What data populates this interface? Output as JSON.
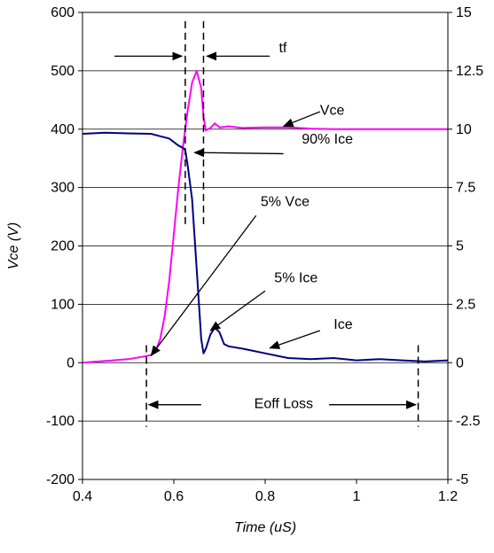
{
  "chart_data": {
    "type": "line",
    "title": "",
    "xlabel": "Time (uS)",
    "ylabel": "Vce (V)",
    "xlim": [
      0.4,
      1.2
    ],
    "ylim": [
      -200,
      600
    ],
    "y2lim": [
      -5,
      15
    ],
    "grid": true,
    "x_ticks": [
      "0.4",
      "0.6",
      "0.8",
      "1",
      "1.2"
    ],
    "y_ticks": [
      "600",
      "500",
      "400",
      "300",
      "200",
      "100",
      "0",
      "-100",
      "-200"
    ],
    "y2_ticks": [
      "15",
      "12.5",
      "10",
      "7.5",
      "5",
      "2.5",
      "0",
      "-2.5",
      "-5"
    ],
    "series": [
      {
        "name": "Vce",
        "color": "#ff00ff",
        "axis": "left",
        "points": [
          [
            0.4,
            0
          ],
          [
            0.45,
            3
          ],
          [
            0.5,
            6
          ],
          [
            0.53,
            10
          ],
          [
            0.55,
            13
          ],
          [
            0.56,
            20
          ],
          [
            0.57,
            40
          ],
          [
            0.58,
            80
          ],
          [
            0.59,
            140
          ],
          [
            0.6,
            220
          ],
          [
            0.61,
            300
          ],
          [
            0.62,
            370
          ],
          [
            0.63,
            430
          ],
          [
            0.64,
            480
          ],
          [
            0.65,
            500
          ],
          [
            0.66,
            470
          ],
          [
            0.665,
            420
          ],
          [
            0.67,
            398
          ],
          [
            0.68,
            402
          ],
          [
            0.69,
            410
          ],
          [
            0.7,
            403
          ],
          [
            0.72,
            405
          ],
          [
            0.75,
            402
          ],
          [
            0.8,
            403
          ],
          [
            0.85,
            403
          ],
          [
            0.9,
            401
          ],
          [
            0.95,
            400
          ],
          [
            1.0,
            400
          ],
          [
            1.1,
            400
          ],
          [
            1.2,
            400
          ]
        ]
      },
      {
        "name": "Ice",
        "color": "#000080",
        "axis": "right",
        "points": [
          [
            0.4,
            9.8
          ],
          [
            0.45,
            9.85
          ],
          [
            0.5,
            9.82
          ],
          [
            0.55,
            9.8
          ],
          [
            0.57,
            9.7
          ],
          [
            0.59,
            9.6
          ],
          [
            0.61,
            9.3
          ],
          [
            0.62,
            9.2
          ],
          [
            0.625,
            9.1
          ],
          [
            0.63,
            8.5
          ],
          [
            0.64,
            7.0
          ],
          [
            0.65,
            4.0
          ],
          [
            0.66,
            1.0
          ],
          [
            0.665,
            0.4
          ],
          [
            0.67,
            0.6
          ],
          [
            0.68,
            1.2
          ],
          [
            0.69,
            1.5
          ],
          [
            0.7,
            1.3
          ],
          [
            0.71,
            0.8
          ],
          [
            0.72,
            0.7
          ],
          [
            0.75,
            0.6
          ],
          [
            0.8,
            0.4
          ],
          [
            0.85,
            0.2
          ],
          [
            0.9,
            0.15
          ],
          [
            0.95,
            0.2
          ],
          [
            1.0,
            0.1
          ],
          [
            1.05,
            0.15
          ],
          [
            1.1,
            0.1
          ],
          [
            1.15,
            0.05
          ],
          [
            1.2,
            0.1
          ]
        ]
      }
    ],
    "markers": {
      "dashed_vertical_x": [
        0.54,
        0.625,
        0.665,
        1.135
      ]
    },
    "annotations": [
      {
        "id": "tf",
        "text": "tf",
        "label_at": [
          0.83,
          532
        ],
        "arrows": [
          [
            0.47,
            525,
            0.618,
            525
          ],
          [
            0.81,
            525,
            0.672,
            525
          ]
        ]
      },
      {
        "id": "vce",
        "text": "Vce",
        "label_at": [
          0.92,
          425
        ],
        "arrows": [
          [
            0.92,
            430,
            0.84,
            405
          ]
        ]
      },
      {
        "id": "ice90",
        "text": "90% Ice",
        "label_at": [
          0.88,
          375
        ],
        "arrows": [
          [
            0.84,
            358,
            0.645,
            360
          ]
        ]
      },
      {
        "id": "vce5",
        "text": "5% Vce",
        "label_at": [
          0.79,
          268
        ],
        "arrows": [
          [
            0.78,
            252,
            0.55,
            12
          ]
        ]
      },
      {
        "id": "ice5",
        "text": "5% Ice",
        "label_at": [
          0.82,
          138
        ],
        "arrows": [
          [
            0.8,
            123,
            0.68,
            55
          ]
        ]
      },
      {
        "id": "ice",
        "text": "Ice",
        "label_at": [
          0.95,
          58
        ],
        "arrows": [
          [
            0.92,
            55,
            0.81,
            25
          ]
        ]
      },
      {
        "id": "eoff",
        "text": "Eoff Loss",
        "label_at": [
          0.94,
          -78
        ],
        "arrows": [
          [
            0.66,
            -72,
            0.545,
            -72
          ],
          [
            0.94,
            -72,
            1.13,
            -72
          ]
        ]
      }
    ]
  }
}
